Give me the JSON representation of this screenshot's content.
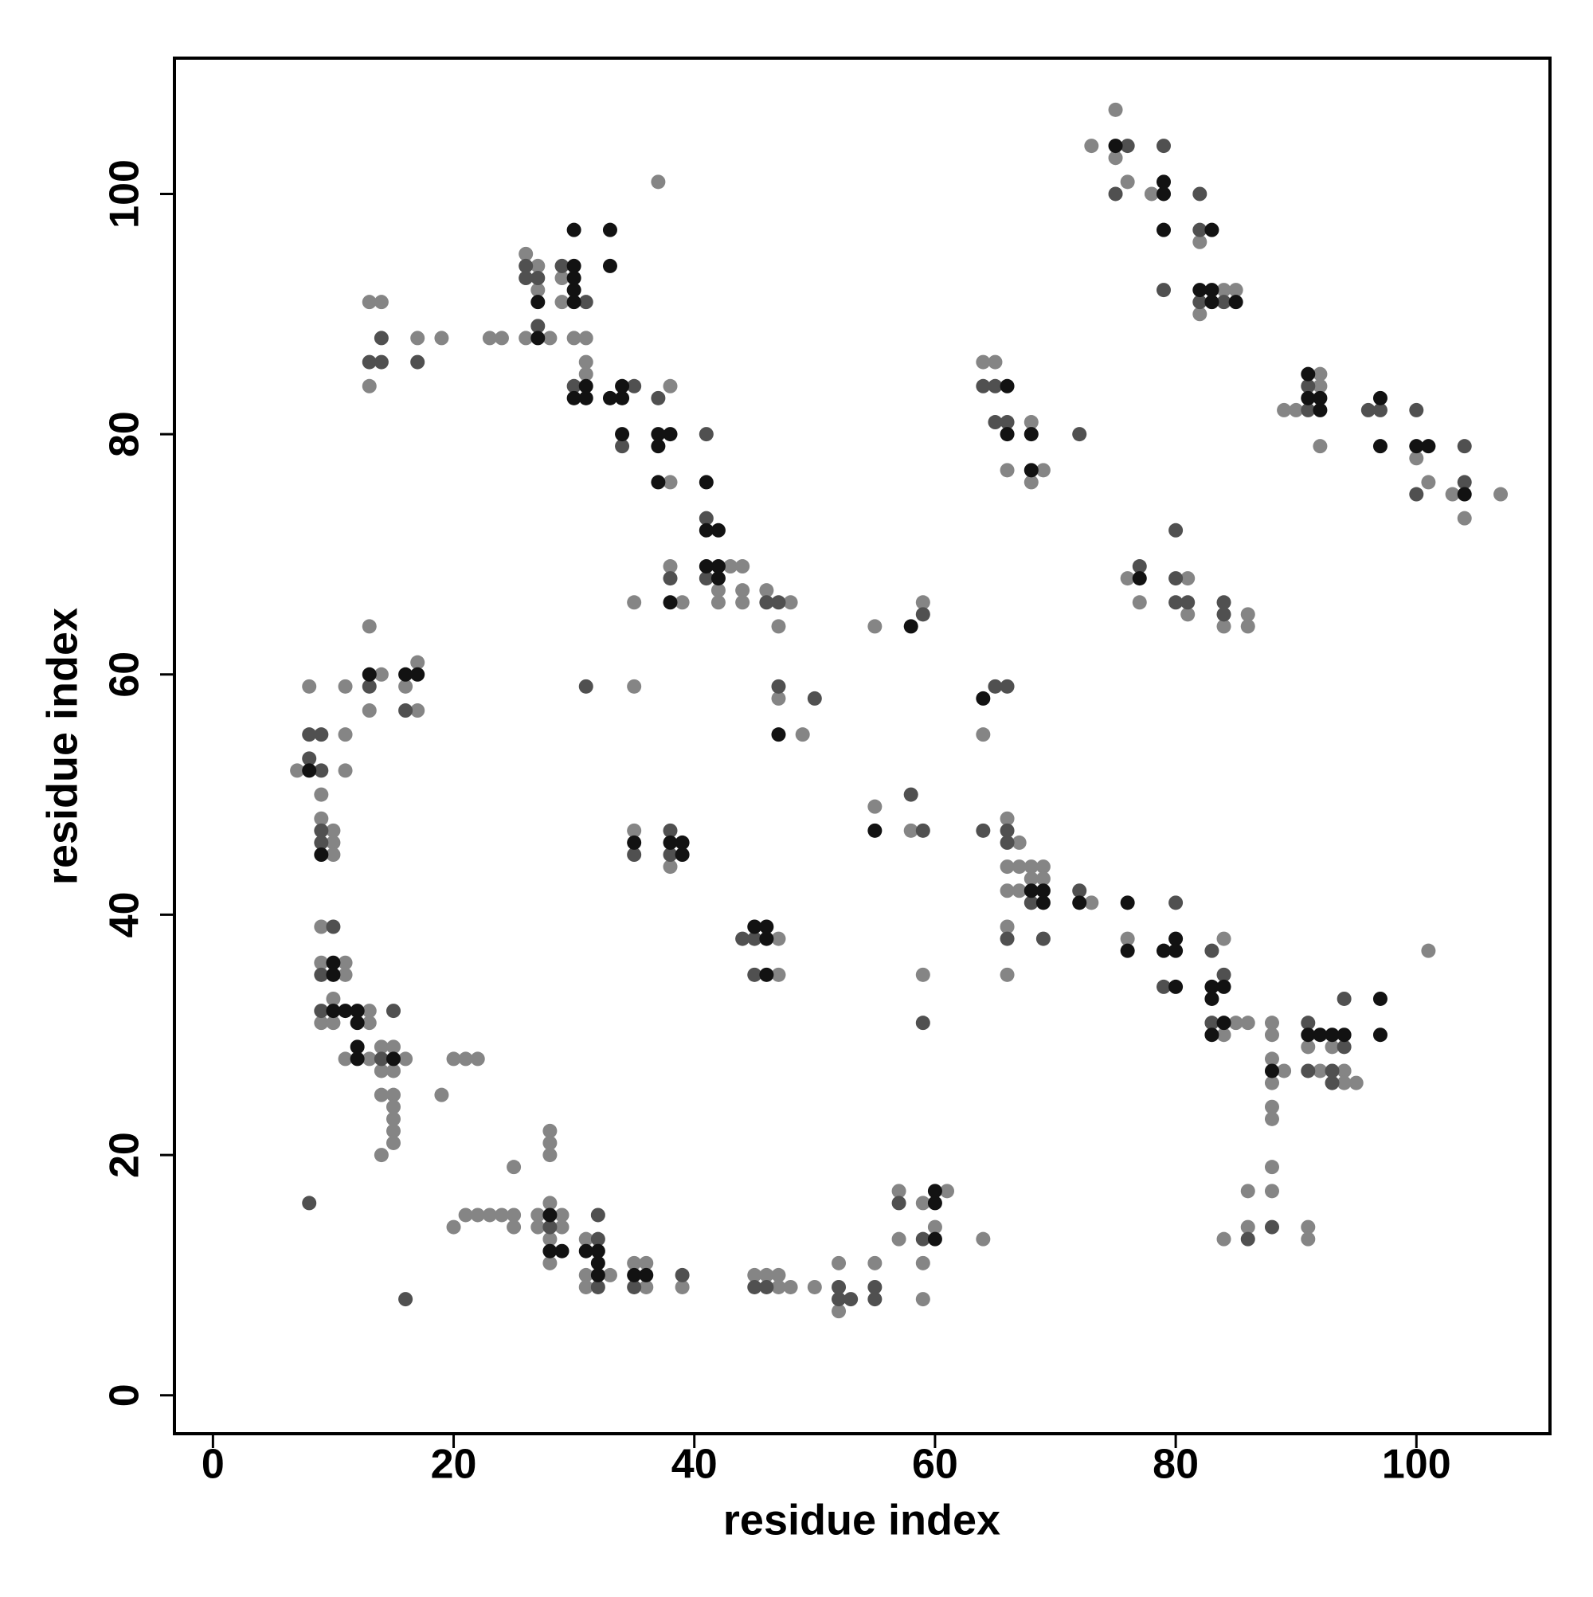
{
  "chart_data": {
    "type": "scatter",
    "xlabel": "residue index",
    "ylabel": "residue index",
    "xlim": [
      -3.2,
      111.1
    ],
    "ylim": [
      -3.2,
      111.3
    ],
    "xticks": [
      0,
      20,
      40,
      60,
      80,
      100
    ],
    "yticks": [
      0,
      20,
      40,
      60,
      80,
      100
    ],
    "grid": false,
    "series": [
      {
        "color": "#858585",
        "x": [
          73,
          75,
          75,
          76,
          78,
          82,
          82,
          84,
          85,
          92,
          92,
          90,
          89,
          92,
          100,
          101,
          103,
          104,
          107,
          64,
          65,
          68,
          66,
          69,
          68,
          76,
          77,
          81,
          81,
          84,
          86,
          86,
          13,
          14,
          13,
          17,
          19,
          23,
          24,
          26,
          27,
          27,
          26,
          28,
          29,
          29,
          30,
          31,
          31,
          31,
          38,
          38,
          37,
          43,
          44,
          42,
          44,
          42,
          44,
          46,
          48,
          47,
          38,
          39,
          35,
          47,
          49,
          35,
          55,
          59,
          64,
          8,
          11,
          14,
          17,
          16,
          13,
          13,
          17,
          11,
          7,
          11,
          9,
          9,
          10,
          10,
          10,
          9,
          9,
          11,
          11,
          10,
          13,
          9,
          10,
          13,
          14,
          15,
          11,
          13,
          16,
          14,
          15,
          14,
          15,
          15,
          15,
          15,
          15,
          14,
          19,
          20,
          21,
          22,
          35,
          38,
          47,
          47,
          55,
          58,
          59,
          66,
          67,
          66,
          67,
          68,
          69,
          66,
          67,
          68,
          69,
          73,
          66,
          66,
          76,
          84,
          84,
          85,
          86,
          88,
          88,
          88,
          89,
          88,
          88,
          88,
          88,
          88,
          86,
          86,
          84,
          91,
          93,
          92,
          94,
          94,
          95,
          91,
          91,
          101,
          64,
          20,
          21,
          22,
          23,
          24,
          25,
          25,
          25,
          27,
          27,
          28,
          29,
          29,
          28,
          28,
          28,
          28,
          28,
          31,
          31,
          33,
          31,
          35,
          36,
          36,
          39,
          45,
          46,
          47,
          47,
          48,
          50,
          52,
          52,
          55,
          57,
          57,
          59,
          61,
          60,
          59,
          59
        ],
        "values": [
          104,
          107,
          103,
          101,
          100,
          96,
          90,
          92,
          92,
          85,
          84,
          82,
          82,
          79,
          78,
          76,
          75,
          73,
          75,
          86,
          86,
          81,
          77,
          77,
          76,
          68,
          66,
          68,
          65,
          64,
          65,
          64,
          91,
          91,
          84,
          88,
          88,
          88,
          88,
          95,
          94,
          92,
          88,
          88,
          93,
          91,
          88,
          88,
          86,
          85,
          84,
          76,
          101,
          69,
          69,
          67,
          67,
          66,
          66,
          67,
          66,
          64,
          69,
          66,
          66,
          58,
          55,
          59,
          64,
          66,
          55,
          59,
          59,
          60,
          61,
          59,
          64,
          57,
          57,
          55,
          52,
          52,
          50,
          48,
          47,
          46,
          45,
          39,
          36,
          36,
          35,
          33,
          32,
          31,
          31,
          31,
          29,
          29,
          28,
          28,
          28,
          27,
          27,
          25,
          25,
          24,
          23,
          22,
          21,
          20,
          25,
          28,
          28,
          28,
          47,
          44,
          38,
          35,
          49,
          47,
          35,
          48,
          46,
          44,
          44,
          44,
          44,
          42,
          42,
          43,
          43,
          41,
          39,
          35,
          38,
          38,
          30,
          31,
          31,
          31,
          30,
          28,
          27,
          26,
          24,
          23,
          19,
          17,
          17,
          14,
          13,
          29,
          29,
          27,
          27,
          26,
          26,
          14,
          13,
          37,
          13,
          14,
          15,
          15,
          15,
          15,
          15,
          14,
          19,
          15,
          14,
          16,
          15,
          14,
          13,
          11,
          22,
          21,
          20,
          13,
          10,
          10,
          9,
          11,
          11,
          9,
          9,
          10,
          10,
          10,
          9,
          9,
          9,
          11,
          7,
          11,
          17,
          13,
          16,
          17,
          14,
          11,
          8
        ]
      },
      {
        "color": "#505050",
        "x": [
          76,
          75,
          79,
          79,
          82,
          82,
          82,
          84,
          91,
          91,
          96,
          97,
          100,
          100,
          104,
          104,
          64,
          65,
          65,
          66,
          72,
          77,
          80,
          80,
          80,
          81,
          84,
          84,
          13,
          14,
          14,
          17,
          26,
          26,
          27,
          27,
          29,
          31,
          30,
          35,
          34,
          37,
          41,
          41,
          41,
          46,
          47,
          38,
          47,
          50,
          31,
          59,
          65,
          66,
          13,
          16,
          8,
          9,
          8,
          9,
          9,
          9,
          10,
          9,
          9,
          15,
          14,
          8,
          16,
          35,
          38,
          38,
          44,
          45,
          45,
          58,
          59,
          59,
          64,
          66,
          66,
          68,
          72,
          66,
          69,
          80,
          79,
          83,
          84,
          83,
          86,
          88,
          91,
          94,
          91,
          93,
          93,
          94,
          28,
          32,
          32,
          32,
          35,
          39,
          45,
          46,
          52,
          52,
          53,
          55,
          55,
          57,
          59
        ],
        "values": [
          104,
          100,
          104,
          92,
          100,
          97,
          91,
          91,
          84,
          82,
          82,
          82,
          82,
          75,
          76,
          79,
          84,
          84,
          81,
          81,
          80,
          69,
          72,
          68,
          66,
          66,
          66,
          65,
          86,
          86,
          88,
          86,
          94,
          93,
          93,
          89,
          94,
          91,
          84,
          84,
          79,
          83,
          80,
          73,
          68,
          66,
          66,
          68,
          59,
          58,
          59,
          65,
          59,
          59,
          59,
          57,
          55,
          55,
          53,
          52,
          47,
          46,
          39,
          35,
          32,
          32,
          28,
          16,
          8,
          45,
          47,
          45,
          38,
          38,
          35,
          50,
          47,
          31,
          47,
          47,
          46,
          41,
          42,
          38,
          38,
          41,
          34,
          37,
          35,
          31,
          13,
          14,
          31,
          29,
          27,
          27,
          26,
          33,
          14,
          13,
          15,
          9,
          9,
          10,
          9,
          9,
          9,
          8,
          8,
          9,
          8,
          16,
          13
        ]
      },
      {
        "color": "#121212",
        "x": [
          75,
          79,
          79,
          79,
          83,
          82,
          83,
          83,
          85,
          91,
          91,
          92,
          92,
          97,
          97,
          100,
          101,
          104,
          66,
          66,
          68,
          68,
          77,
          27,
          27,
          30,
          30,
          30,
          30,
          30,
          33,
          33,
          31,
          30,
          31,
          33,
          34,
          34,
          34,
          37,
          38,
          37,
          37,
          41,
          41,
          42,
          41,
          42,
          42,
          38,
          47,
          58,
          64,
          13,
          16,
          17,
          8,
          9,
          10,
          10,
          10,
          11,
          12,
          12,
          12,
          12,
          15,
          35,
          38,
          39,
          39,
          45,
          46,
          46,
          46,
          55,
          68,
          69,
          69,
          72,
          76,
          76,
          79,
          80,
          80,
          80,
          83,
          84,
          83,
          84,
          83,
          88,
          92,
          91,
          93,
          94,
          97,
          97,
          28,
          28,
          29,
          31,
          32,
          32,
          32,
          35,
          36,
          60,
          60,
          60
        ],
        "values": [
          104,
          101,
          100,
          97,
          97,
          92,
          92,
          91,
          91,
          85,
          83,
          83,
          82,
          83,
          79,
          79,
          79,
          75,
          84,
          80,
          80,
          77,
          68,
          91,
          88,
          94,
          93,
          92,
          91,
          97,
          97,
          94,
          84,
          83,
          83,
          83,
          84,
          83,
          80,
          80,
          80,
          79,
          76,
          76,
          72,
          72,
          69,
          69,
          68,
          66,
          55,
          64,
          58,
          60,
          60,
          60,
          52,
          45,
          36,
          35,
          32,
          32,
          32,
          31,
          29,
          28,
          28,
          46,
          46,
          46,
          45,
          39,
          39,
          38,
          35,
          47,
          42,
          42,
          41,
          41,
          41,
          37,
          37,
          38,
          37,
          34,
          34,
          34,
          33,
          31,
          30,
          27,
          30,
          30,
          30,
          30,
          33,
          30,
          15,
          12,
          12,
          12,
          12,
          11,
          10,
          10,
          10,
          17,
          16,
          13
        ]
      }
    ]
  }
}
